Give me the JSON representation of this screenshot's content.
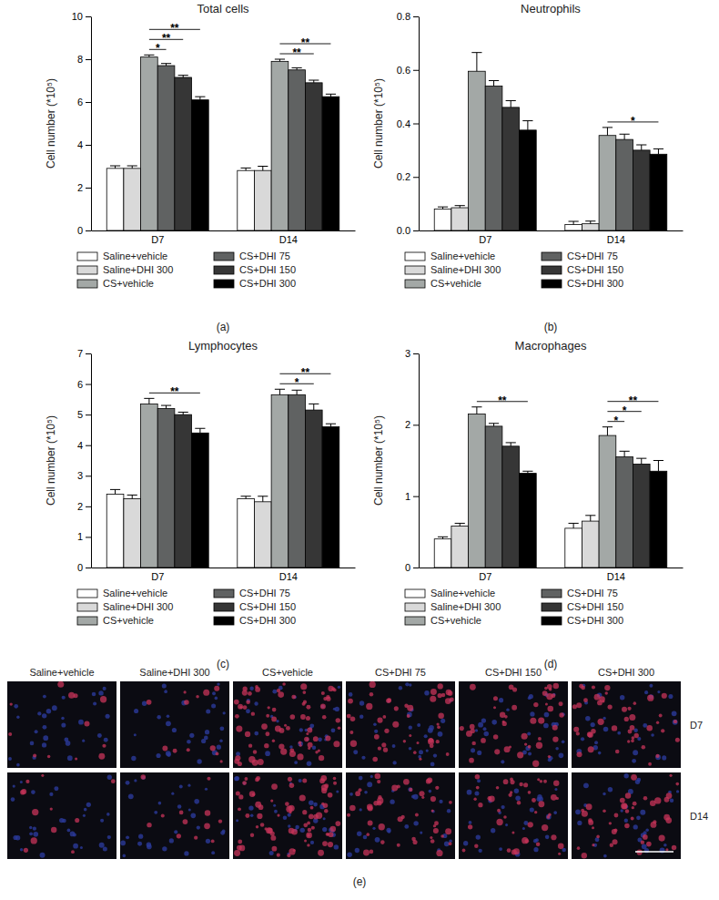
{
  "chart_data": [
    {
      "type": "bar",
      "title": "Total cells",
      "y_label": "Cell number (*10⁵)",
      "panel_label": "(a)",
      "categories": [
        "D7",
        "D14"
      ],
      "ylim": [
        0,
        10
      ],
      "yticks": [
        0,
        2,
        4,
        6,
        8,
        10
      ],
      "series": [
        {
          "name": "Saline+vehicle",
          "color": "#ffffff",
          "values": [
            2.9,
            2.8
          ],
          "errors": [
            0.12,
            0.12
          ]
        },
        {
          "name": "Saline+DHI 300",
          "color": "#d9d9d9",
          "values": [
            2.9,
            2.8
          ],
          "errors": [
            0.12,
            0.2
          ]
        },
        {
          "name": "CS+vehicle",
          "color": "#a3a8a6",
          "values": [
            8.1,
            7.9
          ],
          "errors": [
            0.1,
            0.1
          ]
        },
        {
          "name": "CS+DHI 75",
          "color": "#606262",
          "values": [
            7.7,
            7.5
          ],
          "errors": [
            0.1,
            0.1
          ]
        },
        {
          "name": "CS+DHI 150",
          "color": "#363636",
          "values": [
            7.15,
            6.9
          ],
          "errors": [
            0.1,
            0.12
          ]
        },
        {
          "name": "CS+DHI 300",
          "color": "#000000",
          "values": [
            6.1,
            6.25
          ],
          "errors": [
            0.15,
            0.12
          ]
        }
      ],
      "significance": [
        {
          "category": "D7",
          "from": "CS+vehicle",
          "to": "CS+DHI 75",
          "label": "*"
        },
        {
          "category": "D7",
          "from": "CS+vehicle",
          "to": "CS+DHI 150",
          "label": "**"
        },
        {
          "category": "D7",
          "from": "CS+vehicle",
          "to": "CS+DHI 300",
          "label": "**"
        },
        {
          "category": "D14",
          "from": "CS+vehicle",
          "to": "CS+DHI 150",
          "label": "**"
        },
        {
          "category": "D14",
          "from": "CS+vehicle",
          "to": "CS+DHI 300",
          "label": "**"
        }
      ]
    },
    {
      "type": "bar",
      "title": "Neutrophils",
      "y_label": "Cell number (*10⁵)",
      "panel_label": "(b)",
      "categories": [
        "D7",
        "D14"
      ],
      "ylim": [
        0,
        0.8
      ],
      "yticks": [
        {
          "value": 0,
          "label": "0.0"
        },
        0.2,
        0.4,
        0.6,
        0.8
      ],
      "series": [
        {
          "name": "Saline+vehicle",
          "color": "#ffffff",
          "values": [
            0.08,
            0.022
          ],
          "errors": [
            0.008,
            0.012
          ]
        },
        {
          "name": "Saline+DHI 300",
          "color": "#d9d9d9",
          "values": [
            0.085,
            0.025
          ],
          "errors": [
            0.008,
            0.01
          ]
        },
        {
          "name": "CS+vehicle",
          "color": "#a3a8a6",
          "values": [
            0.595,
            0.355
          ],
          "errors": [
            0.07,
            0.03
          ]
        },
        {
          "name": "CS+DHI 75",
          "color": "#606262",
          "values": [
            0.54,
            0.34
          ],
          "errors": [
            0.02,
            0.02
          ]
        },
        {
          "name": "CS+DHI 150",
          "color": "#363636",
          "values": [
            0.46,
            0.3
          ],
          "errors": [
            0.025,
            0.02
          ]
        },
        {
          "name": "CS+DHI 300",
          "color": "#000000",
          "values": [
            0.375,
            0.285
          ],
          "errors": [
            0.035,
            0.02
          ]
        }
      ],
      "significance": [
        {
          "category": "D14",
          "from": "CS+vehicle",
          "to": "CS+DHI 300",
          "label": "*"
        }
      ]
    },
    {
      "type": "bar",
      "title": "Lymphocytes",
      "y_label": "Cell number (*10⁵)",
      "panel_label": "(c)",
      "categories": [
        "D7",
        "D14"
      ],
      "ylim": [
        0,
        7
      ],
      "yticks": [
        0,
        1,
        2,
        3,
        4,
        5,
        6,
        7
      ],
      "series": [
        {
          "name": "Saline+vehicle",
          "color": "#ffffff",
          "values": [
            2.4,
            2.25
          ],
          "errors": [
            0.15,
            0.08
          ]
        },
        {
          "name": "Saline+DHI 300",
          "color": "#d9d9d9",
          "values": [
            2.25,
            2.15
          ],
          "errors": [
            0.12,
            0.18
          ]
        },
        {
          "name": "CS+vehicle",
          "color": "#a3a8a6",
          "values": [
            5.35,
            5.65
          ],
          "errors": [
            0.18,
            0.18
          ]
        },
        {
          "name": "CS+DHI 75",
          "color": "#606262",
          "values": [
            5.2,
            5.65
          ],
          "errors": [
            0.1,
            0.15
          ]
        },
        {
          "name": "CS+DHI 150",
          "color": "#363636",
          "values": [
            5.0,
            5.15
          ],
          "errors": [
            0.08,
            0.2
          ]
        },
        {
          "name": "CS+DHI 300",
          "color": "#000000",
          "values": [
            4.4,
            4.6
          ],
          "errors": [
            0.15,
            0.1
          ]
        }
      ],
      "significance": [
        {
          "category": "D7",
          "from": "CS+vehicle",
          "to": "CS+DHI 300",
          "label": "**"
        },
        {
          "category": "D14",
          "from": "CS+vehicle",
          "to": "CS+DHI 150",
          "label": "*"
        },
        {
          "category": "D14",
          "from": "CS+vehicle",
          "to": "CS+DHI 300",
          "label": "**"
        }
      ]
    },
    {
      "type": "bar",
      "title": "Macrophages",
      "y_label": "Cell number (*10⁵)",
      "panel_label": "(d)",
      "categories": [
        "D7",
        "D14"
      ],
      "ylim": [
        0,
        3
      ],
      "yticks": [
        0,
        1,
        2,
        3
      ],
      "series": [
        {
          "name": "Saline+vehicle",
          "color": "#ffffff",
          "values": [
            0.4,
            0.55
          ],
          "errors": [
            0.03,
            0.07
          ]
        },
        {
          "name": "Saline+DHI 300",
          "color": "#d9d9d9",
          "values": [
            0.58,
            0.65
          ],
          "errors": [
            0.04,
            0.08
          ]
        },
        {
          "name": "CS+vehicle",
          "color": "#a3a8a6",
          "values": [
            2.15,
            1.85
          ],
          "errors": [
            0.1,
            0.12
          ]
        },
        {
          "name": "CS+DHI 75",
          "color": "#606262",
          "values": [
            1.98,
            1.55
          ],
          "errors": [
            0.04,
            0.08
          ]
        },
        {
          "name": "CS+DHI 150",
          "color": "#363636",
          "values": [
            1.7,
            1.45
          ],
          "errors": [
            0.05,
            0.08
          ]
        },
        {
          "name": "CS+DHI 300",
          "color": "#000000",
          "values": [
            1.32,
            1.35
          ],
          "errors": [
            0.03,
            0.15
          ]
        }
      ],
      "significance": [
        {
          "category": "D7",
          "from": "CS+vehicle",
          "to": "CS+DHI 300",
          "label": "**"
        },
        {
          "category": "D14",
          "from": "CS+vehicle",
          "to": "CS+DHI 75",
          "label": "*"
        },
        {
          "category": "D14",
          "from": "CS+vehicle",
          "to": "CS+DHI 150",
          "label": "*"
        },
        {
          "category": "D14",
          "from": "CS+vehicle",
          "to": "CS+DHI 300",
          "label": "**"
        }
      ]
    }
  ],
  "image_panel": {
    "columns": [
      "Saline+vehicle",
      "Saline+DHI 300",
      "CS+vehicle",
      "CS+DHI 75",
      "CS+DHI 150",
      "CS+DHI 300"
    ],
    "rows": [
      "D7",
      "D14"
    ],
    "panel_label": "(e)"
  }
}
